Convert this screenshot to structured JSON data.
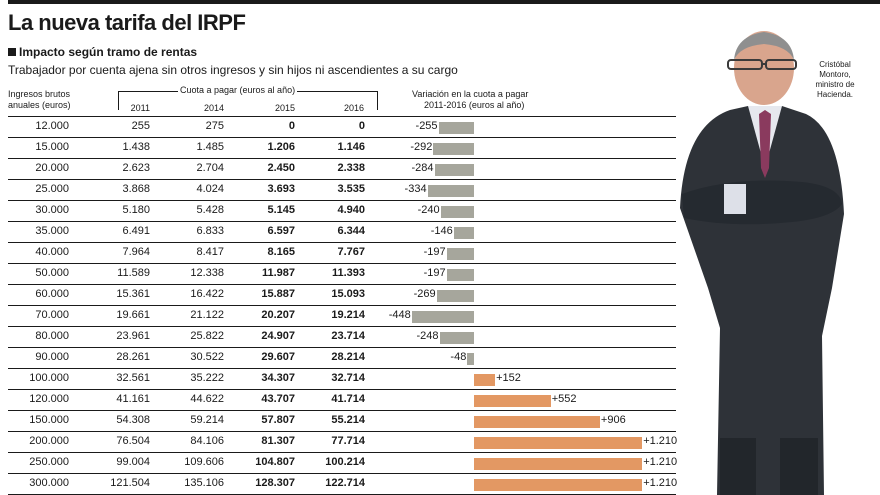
{
  "header": {
    "title": "La nueva tarifa del IRPF",
    "subtitle": "Impacto según tramo de rentas",
    "description": "Trabajador por cuenta ajena sin otros ingresos y sin hijos ni ascendientes a su cargo"
  },
  "columns": {
    "ingresos_line1": "Ingresos brutos",
    "ingresos_line2": "anuales (euros)",
    "cuota_group": "Cuota a pagar (euros al año)",
    "y2011": "2011",
    "y2014": "2014",
    "y2015": "2015",
    "y2016": "2016",
    "variacion_line1": "Variación en la cuota a pagar",
    "variacion_line2": "2011-2016 (euros al año)"
  },
  "caption": {
    "line1": "Cristóbal",
    "line2": "Montoro,",
    "line3": "ministro de",
    "line4": "Hacienda."
  },
  "colors": {
    "negative_bar": "#a6a69c",
    "positive_bar": "#e39863"
  },
  "chart_data": {
    "type": "table",
    "title": "La nueva tarifa del IRPF",
    "columns": [
      "Ingresos brutos anuales (euros)",
      "2011",
      "2014",
      "2015",
      "2016",
      "Variación en la cuota a pagar 2011-2016 (euros al año)"
    ],
    "rows": [
      {
        "ingresos": "12.000",
        "y2011": "255",
        "y2014": "275",
        "y2015": "0",
        "y2016": "0",
        "variacion": -255,
        "variacion_label": "-255"
      },
      {
        "ingresos": "15.000",
        "y2011": "1.438",
        "y2014": "1.485",
        "y2015": "1.206",
        "y2016": "1.146",
        "variacion": -292,
        "variacion_label": "-292"
      },
      {
        "ingresos": "20.000",
        "y2011": "2.623",
        "y2014": "2.704",
        "y2015": "2.450",
        "y2016": "2.338",
        "variacion": -284,
        "variacion_label": "-284"
      },
      {
        "ingresos": "25.000",
        "y2011": "3.868",
        "y2014": "4.024",
        "y2015": "3.693",
        "y2016": "3.535",
        "variacion": -334,
        "variacion_label": "-334"
      },
      {
        "ingresos": "30.000",
        "y2011": "5.180",
        "y2014": "5.428",
        "y2015": "5.145",
        "y2016": "4.940",
        "variacion": -240,
        "variacion_label": "-240"
      },
      {
        "ingresos": "35.000",
        "y2011": "6.491",
        "y2014": "6.833",
        "y2015": "6.597",
        "y2016": "6.344",
        "variacion": -146,
        "variacion_label": "-146"
      },
      {
        "ingresos": "40.000",
        "y2011": "7.964",
        "y2014": "8.417",
        "y2015": "8.165",
        "y2016": "7.767",
        "variacion": -197,
        "variacion_label": "-197"
      },
      {
        "ingresos": "50.000",
        "y2011": "11.589",
        "y2014": "12.338",
        "y2015": "11.987",
        "y2016": "11.393",
        "variacion": -197,
        "variacion_label": "-197"
      },
      {
        "ingresos": "60.000",
        "y2011": "15.361",
        "y2014": "16.422",
        "y2015": "15.887",
        "y2016": "15.093",
        "variacion": -269,
        "variacion_label": "-269"
      },
      {
        "ingresos": "70.000",
        "y2011": "19.661",
        "y2014": "21.122",
        "y2015": "20.207",
        "y2016": "19.214",
        "variacion": -448,
        "variacion_label": "-448"
      },
      {
        "ingresos": "80.000",
        "y2011": "23.961",
        "y2014": "25.822",
        "y2015": "24.907",
        "y2016": "23.714",
        "variacion": -248,
        "variacion_label": "-248"
      },
      {
        "ingresos": "90.000",
        "y2011": "28.261",
        "y2014": "30.522",
        "y2015": "29.607",
        "y2016": "28.214",
        "variacion": -48,
        "variacion_label": "-48"
      },
      {
        "ingresos": "100.000",
        "y2011": "32.561",
        "y2014": "35.222",
        "y2015": "34.307",
        "y2016": "32.714",
        "variacion": 152,
        "variacion_label": "+152"
      },
      {
        "ingresos": "120.000",
        "y2011": "41.161",
        "y2014": "44.622",
        "y2015": "43.707",
        "y2016": "41.714",
        "variacion": 552,
        "variacion_label": "+552"
      },
      {
        "ingresos": "150.000",
        "y2011": "54.308",
        "y2014": "59.214",
        "y2015": "57.807",
        "y2016": "55.214",
        "variacion": 906,
        "variacion_label": "+906"
      },
      {
        "ingresos": "200.000",
        "y2011": "76.504",
        "y2014": "84.106",
        "y2015": "81.307",
        "y2016": "77.714",
        "variacion": 1210,
        "variacion_label": "+1.210"
      },
      {
        "ingresos": "250.000",
        "y2011": "99.004",
        "y2014": "109.606",
        "y2015": "104.807",
        "y2016": "100.214",
        "variacion": 1210,
        "variacion_label": "+1.210"
      },
      {
        "ingresos": "300.000",
        "y2011": "121.504",
        "y2014": "135.106",
        "y2015": "128.307",
        "y2016": "122.714",
        "variacion": 1210,
        "variacion_label": "+1.210"
      }
    ]
  }
}
